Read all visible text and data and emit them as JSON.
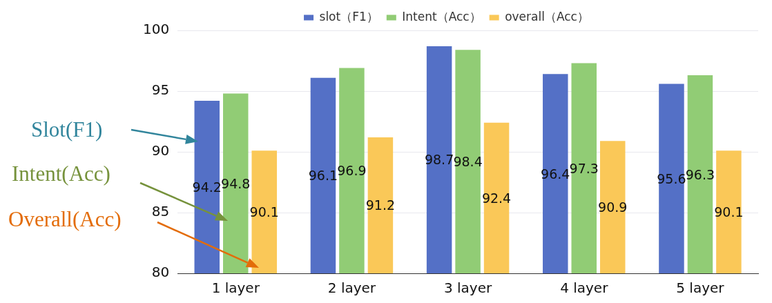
{
  "chart_data": {
    "type": "bar",
    "categories": [
      "1 layer",
      "2 layer",
      "3 layer",
      "4 layer",
      "5 layer"
    ],
    "series": [
      {
        "name": "slot（F1）",
        "color": "#5470c6",
        "values": [
          94.2,
          96.1,
          98.7,
          96.4,
          95.6
        ]
      },
      {
        "name": "Intent（Acc）",
        "color": "#91cc75",
        "values": [
          94.8,
          96.9,
          98.4,
          97.3,
          96.3
        ]
      },
      {
        "name": "overall（Acc）",
        "color": "#fac858",
        "values": [
          90.1,
          91.2,
          92.4,
          90.9,
          90.1
        ]
      }
    ],
    "ylim": [
      80,
      100
    ],
    "yticks": [
      80,
      85,
      90,
      95,
      100
    ],
    "grid": "y",
    "legend": "top",
    "data_labels": true,
    "annotations": [
      "Slot(F1)",
      "Intent(Acc)",
      "Overall(Acc)"
    ]
  }
}
